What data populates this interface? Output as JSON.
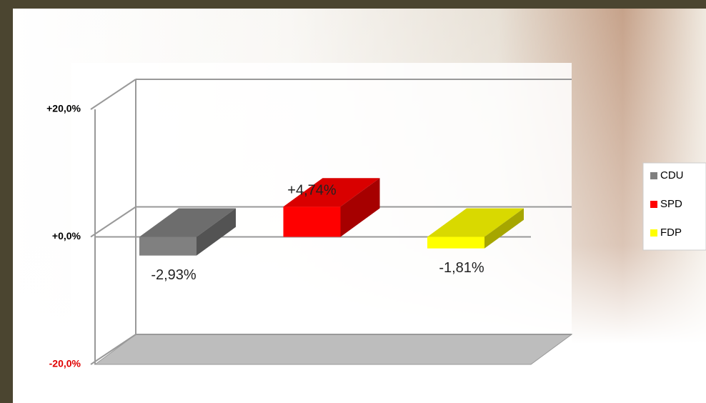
{
  "chart_data": {
    "type": "bar3d",
    "series": [
      {
        "name": "CDU",
        "color": "#808080",
        "values": [
          -2.93
        ],
        "value_labels": [
          "-2,93%"
        ]
      },
      {
        "name": "SPD",
        "color": "#ff0000",
        "values": [
          4.74
        ],
        "value_labels": [
          "+4,74%"
        ]
      },
      {
        "name": "FDP",
        "color": "#ffff00",
        "values": [
          -1.81
        ],
        "value_labels": [
          "-1,81%"
        ]
      }
    ],
    "ylim": [
      -20,
      20
    ],
    "yticks": [
      {
        "value": 20,
        "label": "+20,0%"
      },
      {
        "value": 0,
        "label": "+0,0%"
      },
      {
        "value": -20,
        "label": "-20,0%"
      }
    ],
    "grid": true,
    "legend": "right"
  }
}
